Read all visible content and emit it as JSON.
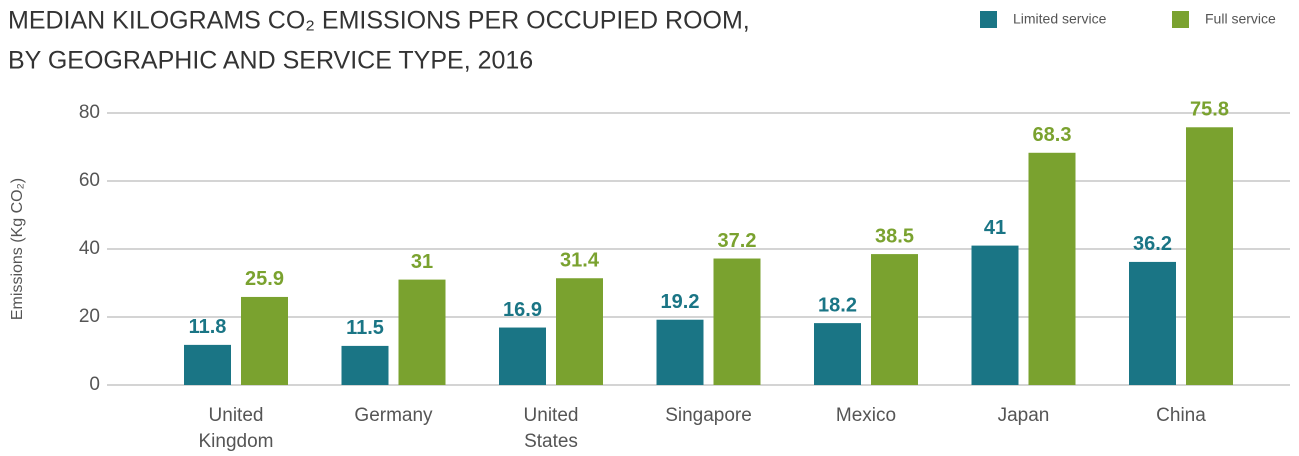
{
  "chart_data": {
    "type": "bar",
    "title": [
      "MEDIAN KILOGRAMS CO₂ EMISSIONS PER OCCUPIED ROOM,",
      "BY GEOGRAPHIC AND SERVICE TYPE, 2016"
    ],
    "y_label": "Emissions (Kg CO₂)",
    "categories": [
      "United\nKingdom",
      "Germany",
      "United\nStates",
      "Singapore",
      "Mexico",
      "Japan",
      "China"
    ],
    "series": [
      {
        "name": "Limited service",
        "color": "#1a7585",
        "values": [
          11.8,
          11.5,
          16.9,
          19.2,
          18.2,
          41,
          36.2
        ]
      },
      {
        "name": "Full service",
        "color": "#7aa22f",
        "values": [
          25.9,
          31,
          31.4,
          37.2,
          38.5,
          68.3,
          75.8
        ]
      }
    ],
    "ylim": [
      0,
      80
    ],
    "yticks": [
      0,
      20,
      40,
      60,
      80
    ],
    "grid": true,
    "legend": "top-right"
  }
}
